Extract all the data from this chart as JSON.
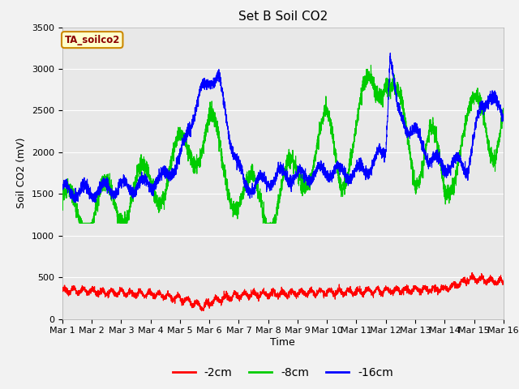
{
  "title": "Set B Soil CO2",
  "xlabel": "Time",
  "ylabel": "Soil CO2 (mV)",
  "annotation_label": "TA_soilco2",
  "ylim": [
    0,
    3500
  ],
  "xlim": [
    0,
    15
  ],
  "xtick_labels": [
    "Mar 1",
    "Mar 2",
    "Mar 3",
    "Mar 4",
    "Mar 5",
    "Mar 6",
    "Mar 7",
    "Mar 8",
    "Mar 9",
    "Mar 10",
    "Mar 11",
    "Mar 12",
    "Mar 13",
    "Mar 14",
    "Mar 15",
    "Mar 16"
  ],
  "xtick_positions": [
    0,
    1,
    2,
    3,
    4,
    5,
    6,
    7,
    8,
    9,
    10,
    11,
    12,
    13,
    14,
    15
  ],
  "grid_color": "#d8d8d8",
  "bg_color": "#e8e8e8",
  "fig_color": "#f2f2f2",
  "line_colors": [
    "#ff0000",
    "#00cc00",
    "#0000ff"
  ],
  "line_labels": [
    "-2cm",
    "-8cm",
    "-16cm"
  ],
  "title_fontsize": 11,
  "label_fontsize": 9,
  "tick_fontsize": 8
}
